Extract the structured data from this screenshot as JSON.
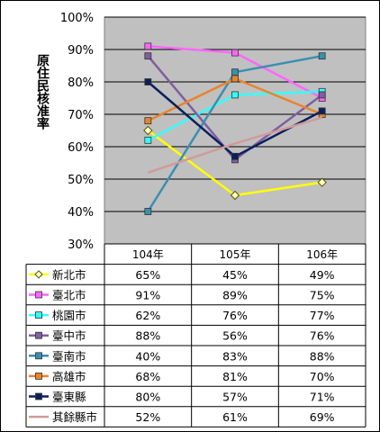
{
  "chart_data": {
    "type": "line",
    "ylabel": "原住民核准率",
    "ylim": [
      30,
      100
    ],
    "yticks": [
      "100%",
      "90%",
      "80%",
      "70%",
      "60%",
      "50%",
      "40%",
      "30%"
    ],
    "categories": [
      "104年",
      "105年",
      "106年"
    ],
    "grid": true,
    "legend_placement": "data-table-below",
    "series": [
      {
        "name": "新北市",
        "values": [
          65,
          45,
          49
        ],
        "labels": [
          "65%",
          "45%",
          "49%"
        ],
        "color": "#ffff00",
        "marker": "diamond"
      },
      {
        "name": "臺北市",
        "values": [
          91,
          89,
          75
        ],
        "labels": [
          "91%",
          "89%",
          "75%"
        ],
        "color": "#ff66ff",
        "marker": "square"
      },
      {
        "name": "桃園市",
        "values": [
          62,
          76,
          77
        ],
        "labels": [
          "62%",
          "76%",
          "77%"
        ],
        "color": "#33ffff",
        "marker": "square"
      },
      {
        "name": "臺中市",
        "values": [
          88,
          56,
          76
        ],
        "labels": [
          "88%",
          "56%",
          "76%"
        ],
        "color": "#7f5f9f",
        "marker": "square"
      },
      {
        "name": "臺南市",
        "values": [
          40,
          83,
          88
        ],
        "labels": [
          "40%",
          "83%",
          "88%"
        ],
        "color": "#3a8fb0",
        "marker": "square"
      },
      {
        "name": "高雄市",
        "values": [
          68,
          81,
          70
        ],
        "labels": [
          "68%",
          "81%",
          "70%"
        ],
        "color": "#e8842c",
        "marker": "square"
      },
      {
        "name": "臺東縣",
        "values": [
          80,
          57,
          71
        ],
        "labels": [
          "80%",
          "57%",
          "71%"
        ],
        "color": "#0a1f5c",
        "marker": "square"
      },
      {
        "name": "其餘縣市",
        "values": [
          52,
          61,
          69
        ],
        "labels": [
          "52%",
          "61%",
          "69%"
        ],
        "color": "#d29a9a",
        "marker": "none"
      }
    ]
  }
}
